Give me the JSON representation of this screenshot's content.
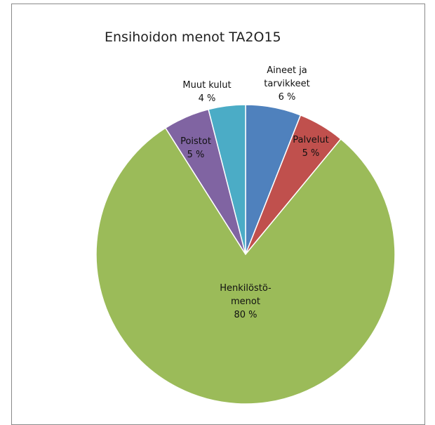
{
  "chart_data": {
    "type": "pie",
    "title": "Ensihoidon menot TA2O15",
    "slices": [
      {
        "label": "Aineet ja tarvikkeet",
        "label_lines": [
          "Aineet ja",
          "tarvikkeet"
        ],
        "value": 6,
        "value_label": "6 %",
        "color": "#4f81bd"
      },
      {
        "label": "Palvelut",
        "label_lines": [
          "Palvelut"
        ],
        "value": 5,
        "value_label": "5 %",
        "color": "#c0504d"
      },
      {
        "label": "Henkilöstö-menot",
        "label_lines": [
          "Henkilöstö-",
          "menot"
        ],
        "value": 80,
        "value_label": "80 %",
        "color": "#9bbb59"
      },
      {
        "label": "Poistot",
        "label_lines": [
          "Poistot"
        ],
        "value": 5,
        "value_label": "5 %",
        "color": "#8064a2"
      },
      {
        "label": "Muut kulut",
        "label_lines": [
          "Muut kulut"
        ],
        "value": 4,
        "value_label": "4 %",
        "color": "#4bacc6"
      }
    ],
    "start_angle_deg": 0,
    "direction": "clockwise",
    "legend": "none"
  }
}
